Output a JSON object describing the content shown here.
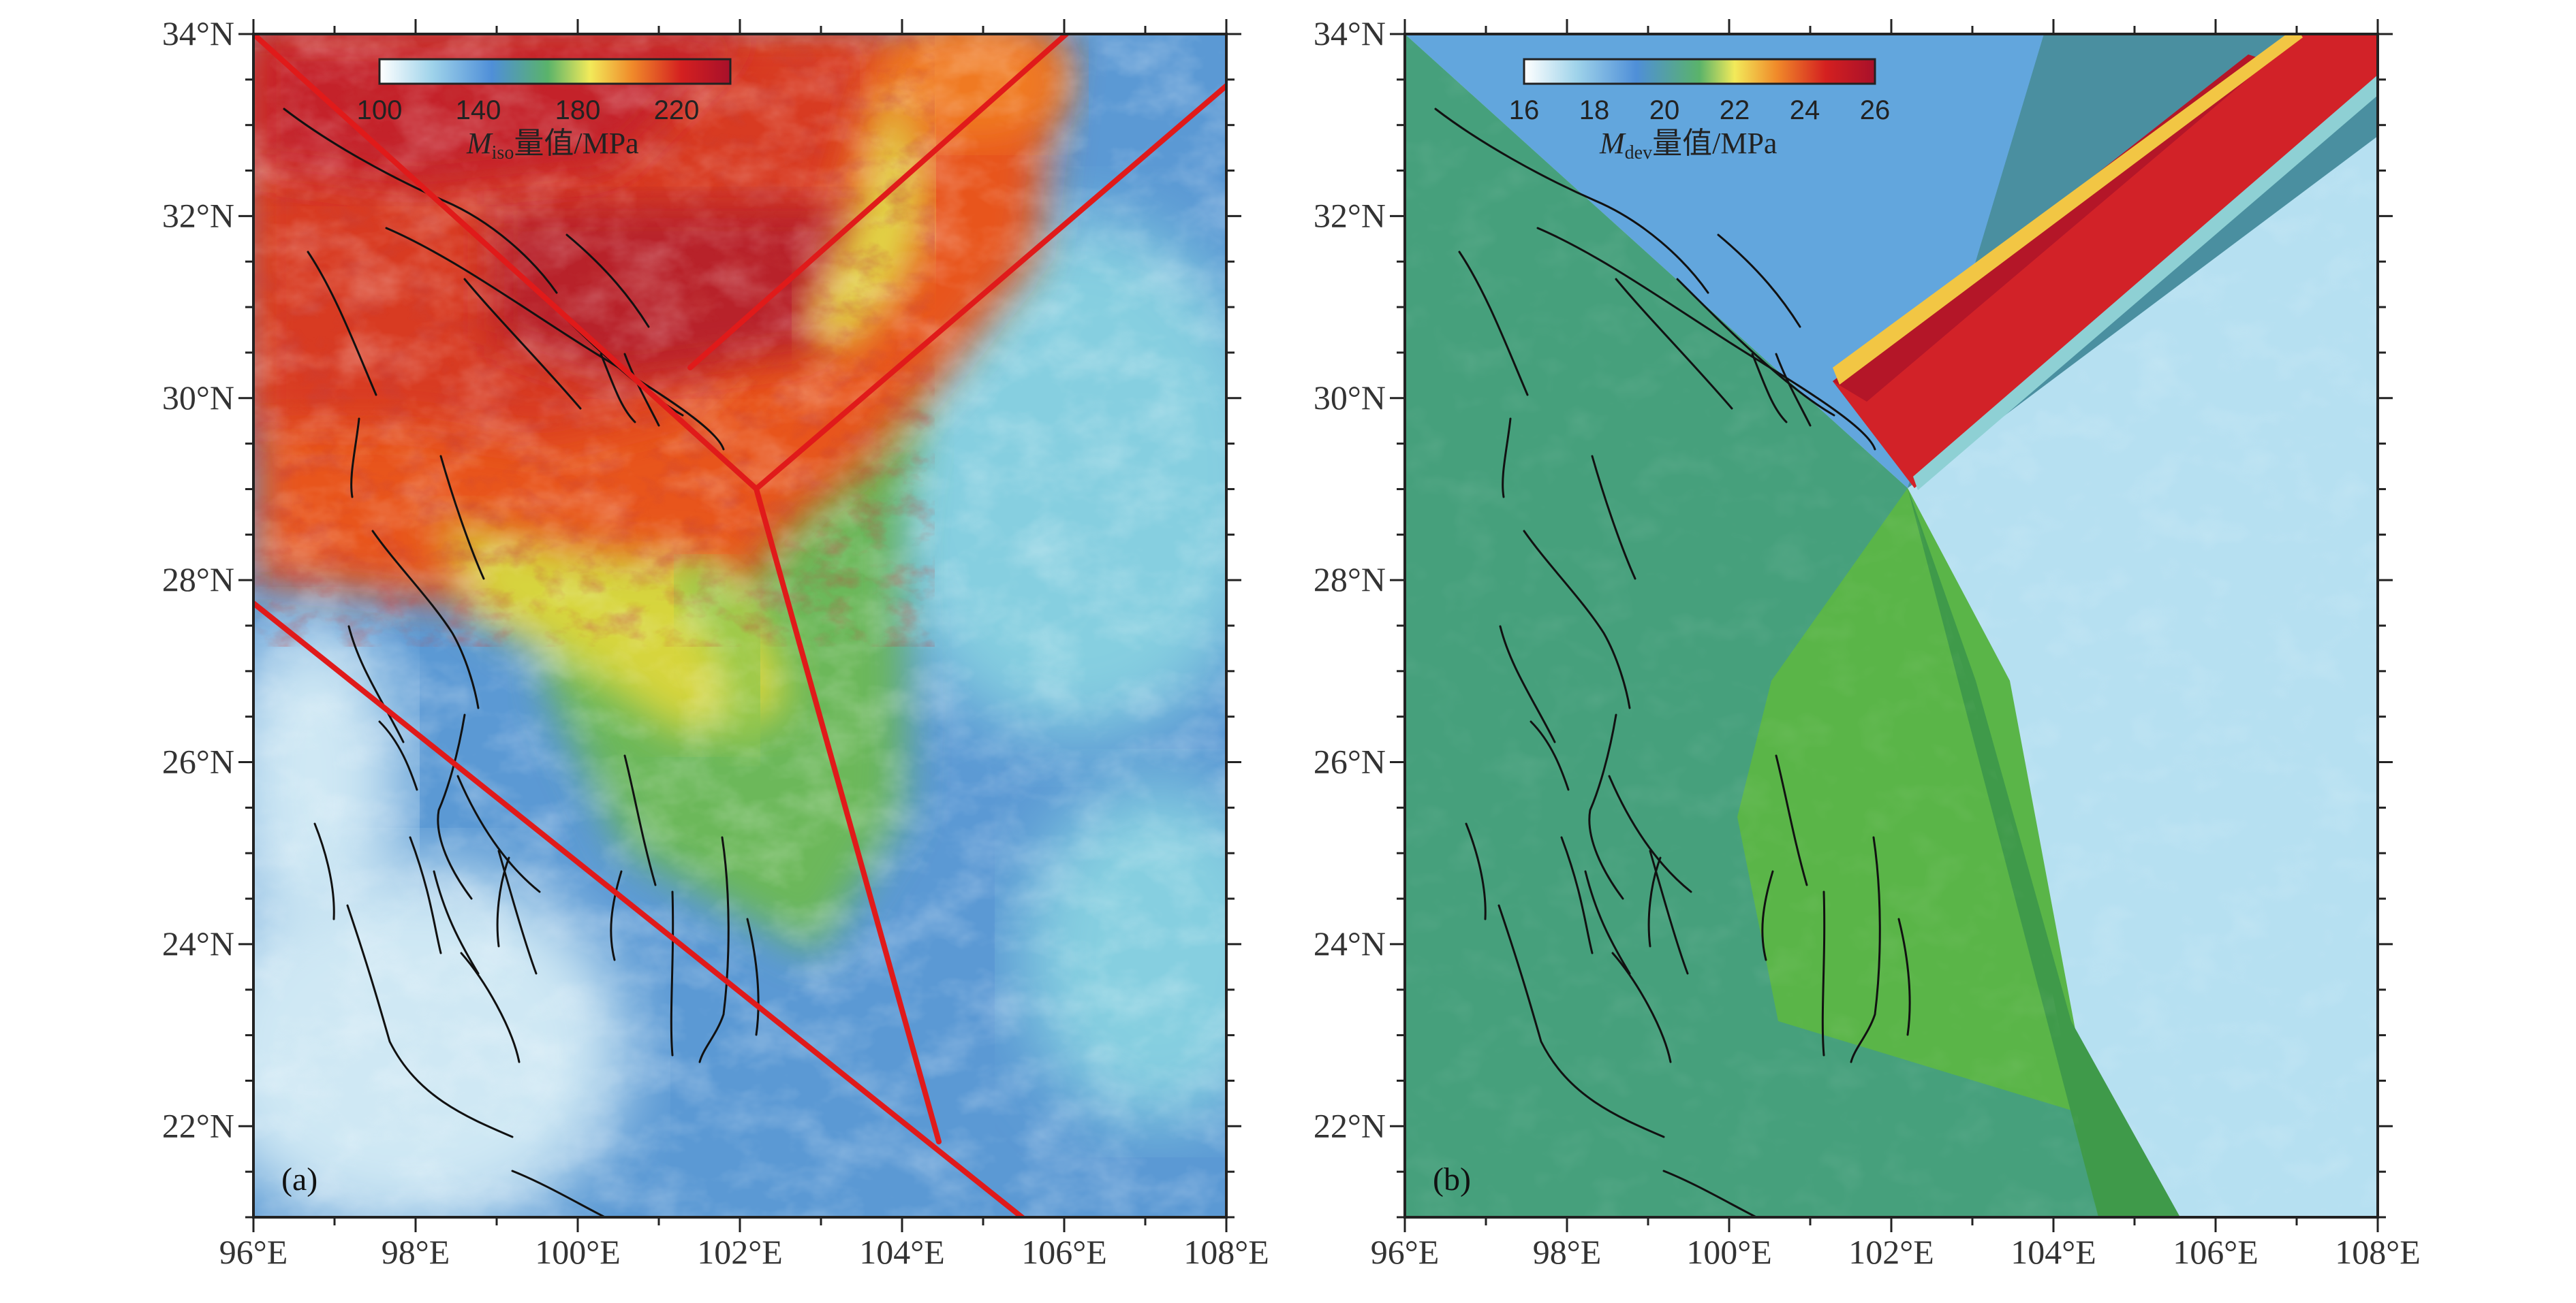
{
  "figure": {
    "lon_ticks": [
      "96°E",
      "98°E",
      "100°E",
      "102°E",
      "104°E",
      "106°E",
      "108°E"
    ],
    "lat_ticks": [
      "34°N",
      "32°N",
      "30°N",
      "28°N",
      "26°N",
      "24°N",
      "22°N"
    ],
    "lon_range": [
      96,
      108
    ],
    "lat_range": [
      21,
      34
    ]
  },
  "panel_a": {
    "label": "(a)",
    "colorbar": {
      "ticks": [
        "100",
        "140",
        "180",
        "220"
      ],
      "title_var": "M",
      "title_sub": "iso",
      "title_rest": "量值/MPa",
      "colors": [
        "#ffffff",
        "#9fd3ea",
        "#4f8fd8",
        "#5ab36a",
        "#f2ea5a",
        "#f08a2a",
        "#d42020",
        "#b01020"
      ]
    }
  },
  "panel_b": {
    "label": "(b)",
    "colorbar": {
      "ticks": [
        "16",
        "18",
        "20",
        "22",
        "24",
        "26"
      ],
      "title_var": "M",
      "title_sub": "dev",
      "title_rest": "量值/MPa",
      "colors": [
        "#ffffff",
        "#9fd3ea",
        "#4f8fd8",
        "#5ab36a",
        "#f2ea5a",
        "#f08a2a",
        "#d42020",
        "#b01020"
      ]
    }
  },
  "colors": {
    "red_boundary": "#e01a1a",
    "fault": "#111111"
  }
}
